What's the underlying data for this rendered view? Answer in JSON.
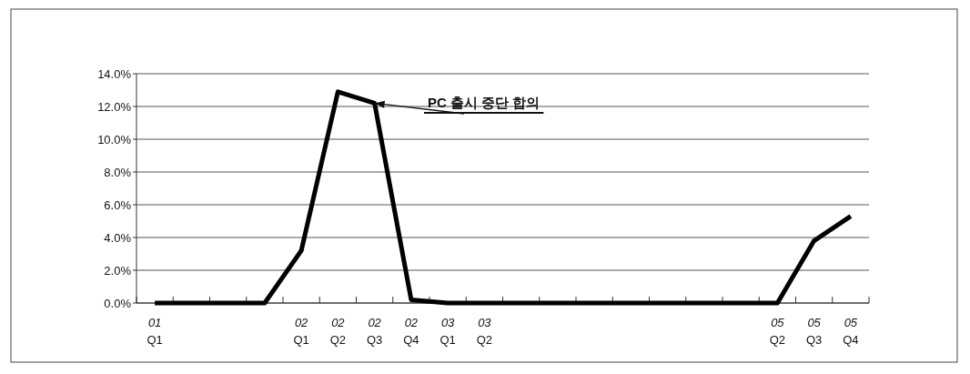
{
  "chart_data": {
    "type": "line",
    "categories": [
      "01\nQ1",
      null,
      null,
      null,
      "02\nQ1",
      "02\nQ2",
      "02\nQ3",
      "02\nQ4",
      "03\nQ1",
      "03\nQ2",
      null,
      null,
      null,
      null,
      null,
      null,
      null,
      "05\nQ2",
      "05\nQ3",
      "05\nQ4"
    ],
    "series": [
      {
        "color": "#000000",
        "values": [
          0,
          0,
          0,
          0,
          3.2,
          12.9,
          12.2,
          0.2,
          0,
          0,
          0,
          0,
          0,
          0,
          0,
          0,
          0,
          0,
          3.8,
          5.3
        ]
      }
    ],
    "ylim": [
      0,
      14
    ],
    "yticks": [
      {
        "value": 0,
        "label": "0.0%"
      },
      {
        "value": 2,
        "label": "2.0%"
      },
      {
        "value": 4,
        "label": "4.0%"
      },
      {
        "value": 6,
        "label": "6.0%"
      },
      {
        "value": 8,
        "label": "8.0%"
      },
      {
        "value": 10,
        "label": "10.0%"
      },
      {
        "value": 12,
        "label": "12.0%"
      },
      {
        "value": 14,
        "label": "14.0%"
      }
    ],
    "grid": "y",
    "annotations": [
      {
        "text": "PC 출시 중단 합의",
        "x": "02\nQ3",
        "y": 12.2
      }
    ]
  }
}
